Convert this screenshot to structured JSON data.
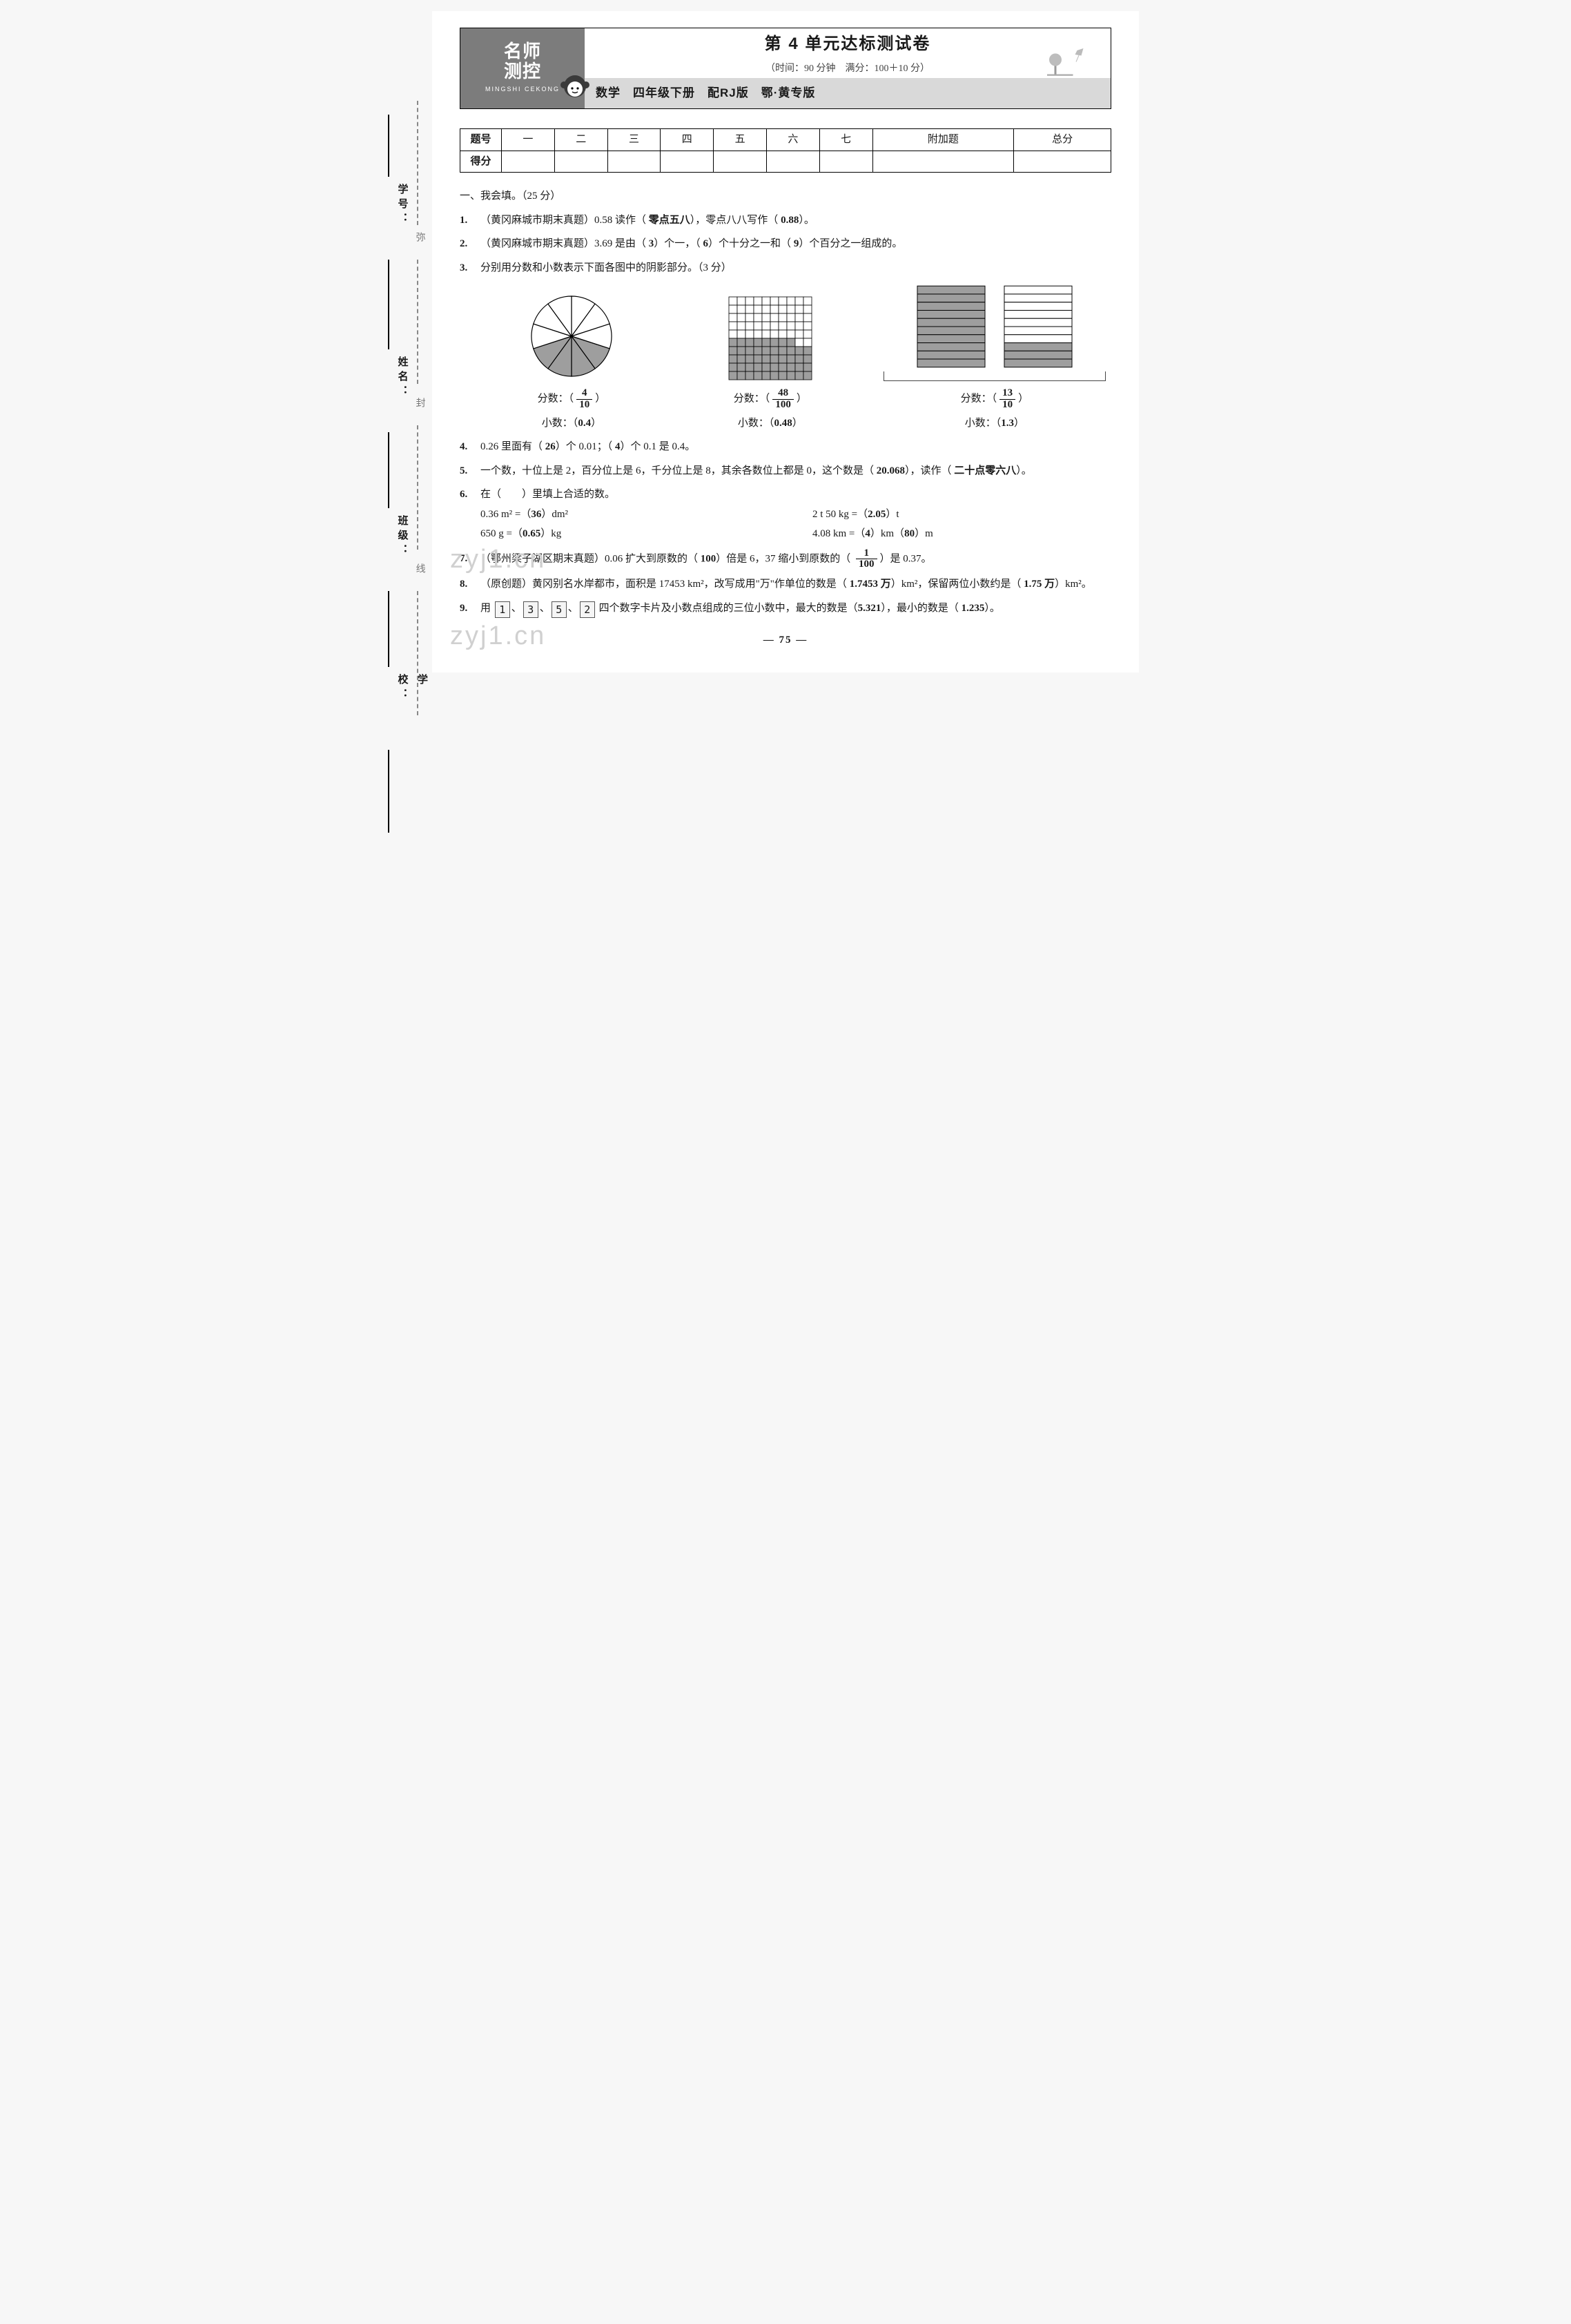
{
  "gutter": {
    "labels": [
      "学号：",
      "姓名：",
      "班级：",
      "学校："
    ],
    "dash_labels": [
      "弥",
      "封",
      "线"
    ]
  },
  "banner": {
    "brand1": "名师",
    "brand2": "测控",
    "pinyin": "MINGSHI CEKONG",
    "title": "第 4 单元达标测试卷",
    "subtitle": "（时间：90 分钟　满分：100＋10 分）",
    "strip": [
      "数学",
      "四年级下册",
      "配RJ版",
      "鄂·黄专版"
    ]
  },
  "score": {
    "row1": [
      "题号",
      "一",
      "二",
      "三",
      "四",
      "五",
      "六",
      "七",
      "附加题",
      "总分"
    ],
    "row2_head": "得分"
  },
  "sec1_head": "一、我会填。（25 分）",
  "q1": {
    "num": "1.",
    "tag": "（黄冈麻城市期末真题）",
    "t1": "0.58 读作（",
    "a1": "零点五八",
    "t2": "），零点八八写作（",
    "a2": "0.88",
    "t3": "）。"
  },
  "q2": {
    "num": "2.",
    "tag": "（黄冈麻城市期末真题）",
    "t1": "3.69 是由（",
    "a1": "3",
    "t2": "）个一，（",
    "a2": "6",
    "t3": "）个十分之一和（",
    "a3": "9",
    "t4": "）个百分之一组成的。"
  },
  "q3": {
    "num": "3.",
    "text": "分别用分数和小数表示下面各图中的阴影部分。（3 分）"
  },
  "figs": {
    "pie": {
      "total": 10,
      "shaded": 4,
      "radius": 58,
      "start_deg": -90,
      "shade_color": "#9e9e9e",
      "line": "#000"
    },
    "grid": {
      "rows": 10,
      "cols": 10,
      "shaded_cells": 48,
      "cell": 12,
      "shade_color": "#9e9e9e",
      "line": "#000",
      "shade_rows_bottom": 4,
      "extra_row_cols": 8
    },
    "bars": {
      "squares": 2,
      "rows": 10,
      "shaded_first": 10,
      "shaded_second": 3,
      "w": 100,
      "h": 120,
      "gap": 26,
      "shade_color": "#9e9e9e",
      "line": "#000"
    },
    "labels": {
      "frac_label": "分数：（",
      "dec_label": "小数：（",
      "close": "）",
      "a": {
        "n": "4",
        "d": "10",
        "dec": "0.4"
      },
      "b": {
        "n": "48",
        "d": "100",
        "dec": "0.48"
      },
      "c": {
        "n": "13",
        "d": "10",
        "dec": "1.3"
      }
    }
  },
  "q4": {
    "num": "4.",
    "t1": "0.26 里面有（",
    "a1": "26",
    "t2": "）个 0.01；（",
    "a2": "4",
    "t3": "）个 0.1 是 0.4。"
  },
  "q5": {
    "num": "5.",
    "t1": "一个数，十位上是 2，百分位上是 6，千分位上是 8，其余各数位上都是 0，这个数是（",
    "a1": "20.068",
    "t2": "），读作（",
    "a2": "二十点零六八",
    "t3": "）。"
  },
  "q6": {
    "num": "6.",
    "head": "在（　　）里填上合适的数。",
    "l1a": "0.36 m² =（",
    "l1a_ans": "36",
    "l1a2": "）dm²",
    "r1a": "2 t 50 kg =（",
    "r1a_ans": "2.05",
    "r1a2": "）t",
    "l2a": "650 g =（",
    "l2a_ans": "0.65",
    "l2a2": "）kg",
    "r2a": "4.08 km =（",
    "r2a_ans1": "4",
    "r2a_mid": "）km（",
    "r2a_ans2": "80",
    "r2a2": "）m"
  },
  "q7": {
    "num": "7.",
    "tag": "（鄂州梁子湖区期末真题）",
    "t1": "0.06 扩大到原数的（",
    "a1": "100",
    "t2": "）倍是 6，37 缩小到原数的（",
    "frac_n": "1",
    "frac_d": "100",
    "t3": "）是 0.37。"
  },
  "q8": {
    "num": "8.",
    "tag": "（原创题）",
    "t1": "黄冈别名水岸都市，面积是 17453 km²，改写成用\"万\"作单位的数是（",
    "a1": "1.7453 万",
    "t2": "）km²，保留两位小数约是（",
    "a2": "1.75 万",
    "t3": "）km²。"
  },
  "q9": {
    "num": "9.",
    "t1": "用",
    "cards": [
      "1",
      "3",
      "5",
      "2"
    ],
    "t2": "四个数字卡片及小数点组成的三位小数中，最大的数是（",
    "a1": "5.321",
    "t3": "），最小的数是（",
    "a2": "1.235",
    "t4": "）。"
  },
  "watermark": "zyj1.cn",
  "page_num": "— 75 —"
}
